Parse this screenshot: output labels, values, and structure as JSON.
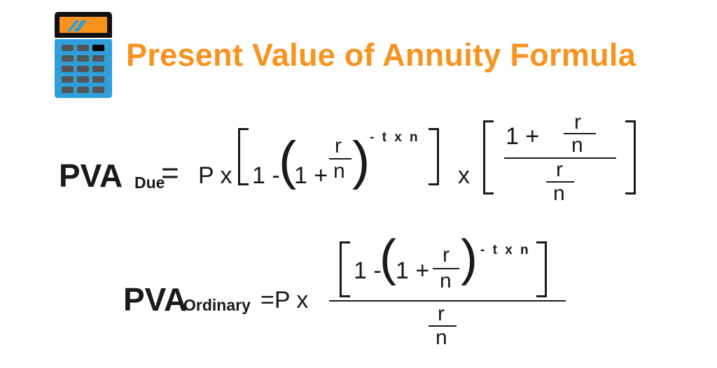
{
  "title": "Present Value of Annuity Formula",
  "colors": {
    "title": "#F7931E",
    "calculator_body": "#2E9FD8",
    "calculator_screen": "#F7931E",
    "keys": "#555555"
  },
  "icon": "calculator-icon",
  "formula_due": {
    "lhs": "PVA",
    "subscript": "Due",
    "equals": "=",
    "coef": "P x",
    "one_minus": "1 -",
    "open_paren": "(",
    "one_plus": "1 +",
    "r": "r",
    "n": "n",
    "close_paren": ")",
    "exponent": "- t x n",
    "times": "x",
    "num_one_plus": "1 +",
    "num_r": "r",
    "num_n": "n",
    "den_r": "r",
    "den_n": "n"
  },
  "formula_ordinary": {
    "lhs": "PVA",
    "subscript": "Ordinary",
    "equals": "=P x",
    "one_minus": "1 -",
    "open_paren": "(",
    "one_plus": "1 +",
    "r": "r",
    "n": "n",
    "close_paren": ")",
    "exponent": "- t x n",
    "den_r": "r",
    "den_n": "n"
  }
}
